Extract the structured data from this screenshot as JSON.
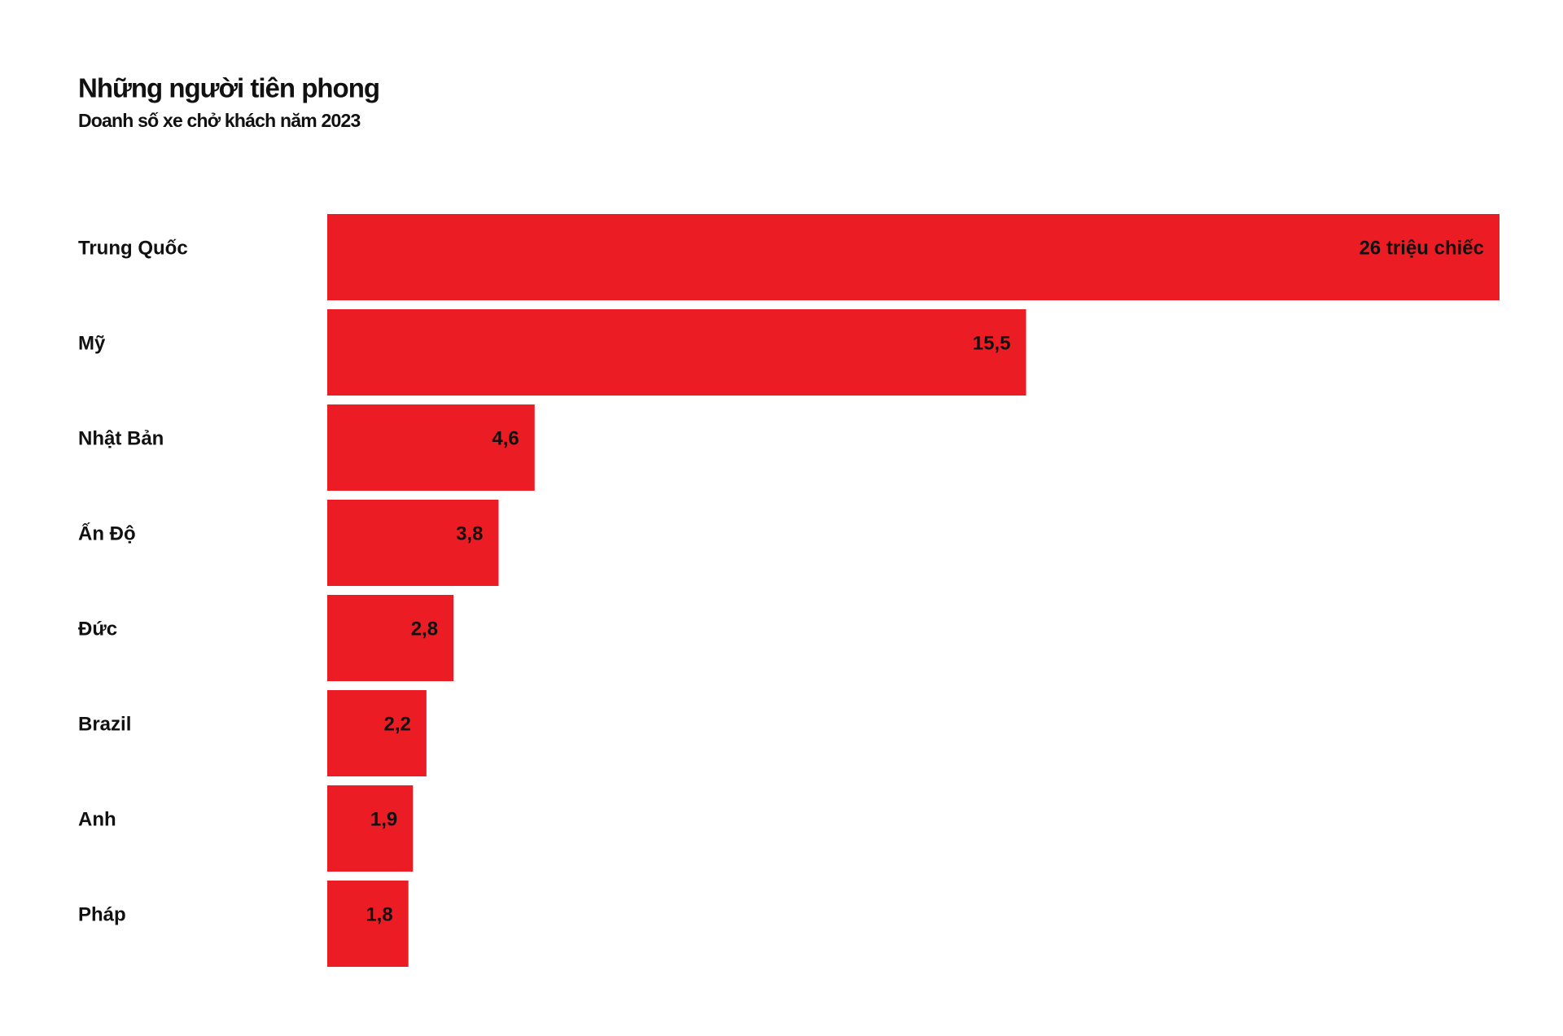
{
  "chart_data": {
    "type": "bar",
    "orientation": "horizontal",
    "title": "Những người tiên phong",
    "subtitle": "Doanh số xe chở khách năm 2023",
    "categories": [
      "Trung Quốc",
      "Mỹ",
      "Nhật Bản",
      "Ấn Độ",
      "Đức",
      "Brazil",
      "Anh",
      "Pháp"
    ],
    "values": [
      26,
      15.5,
      4.6,
      3.8,
      2.8,
      2.2,
      1.9,
      1.8
    ],
    "value_labels": [
      "26 triệu chiếc",
      "15,5",
      "4,6",
      "3,8",
      "2,8",
      "2,2",
      "1,9",
      "1,8"
    ],
    "color": "#ec1c24"
  }
}
